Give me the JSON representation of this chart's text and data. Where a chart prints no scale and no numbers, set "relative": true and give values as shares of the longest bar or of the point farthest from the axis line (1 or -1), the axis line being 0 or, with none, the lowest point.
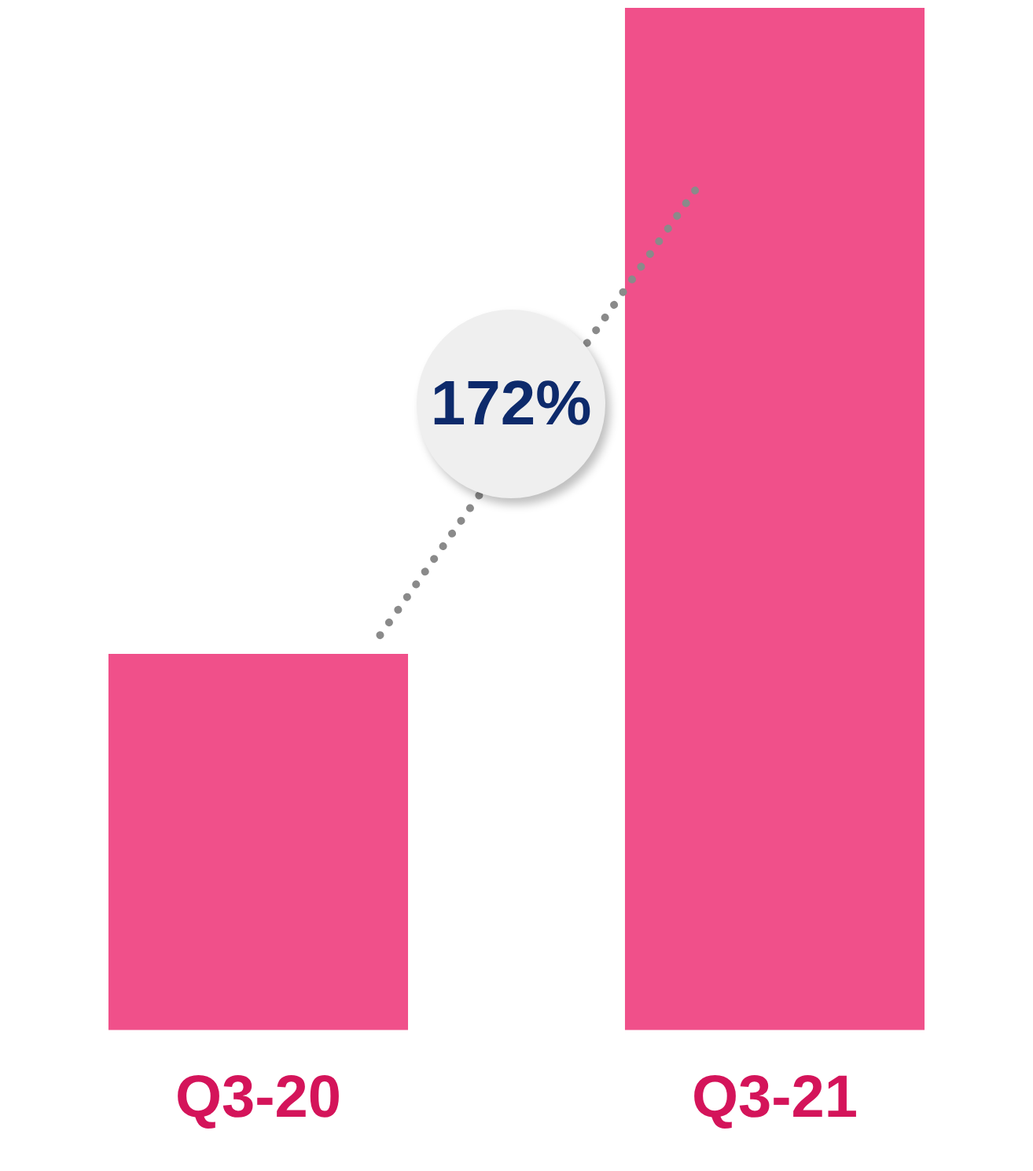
{
  "chart_data": {
    "type": "bar",
    "relative": true,
    "categories": [
      "Q3-20",
      "Q3-21"
    ],
    "values": [
      0.368,
      1
    ],
    "color": "#f0508a",
    "annotations": [
      "172%"
    ],
    "legend": false,
    "grid": false
  }
}
